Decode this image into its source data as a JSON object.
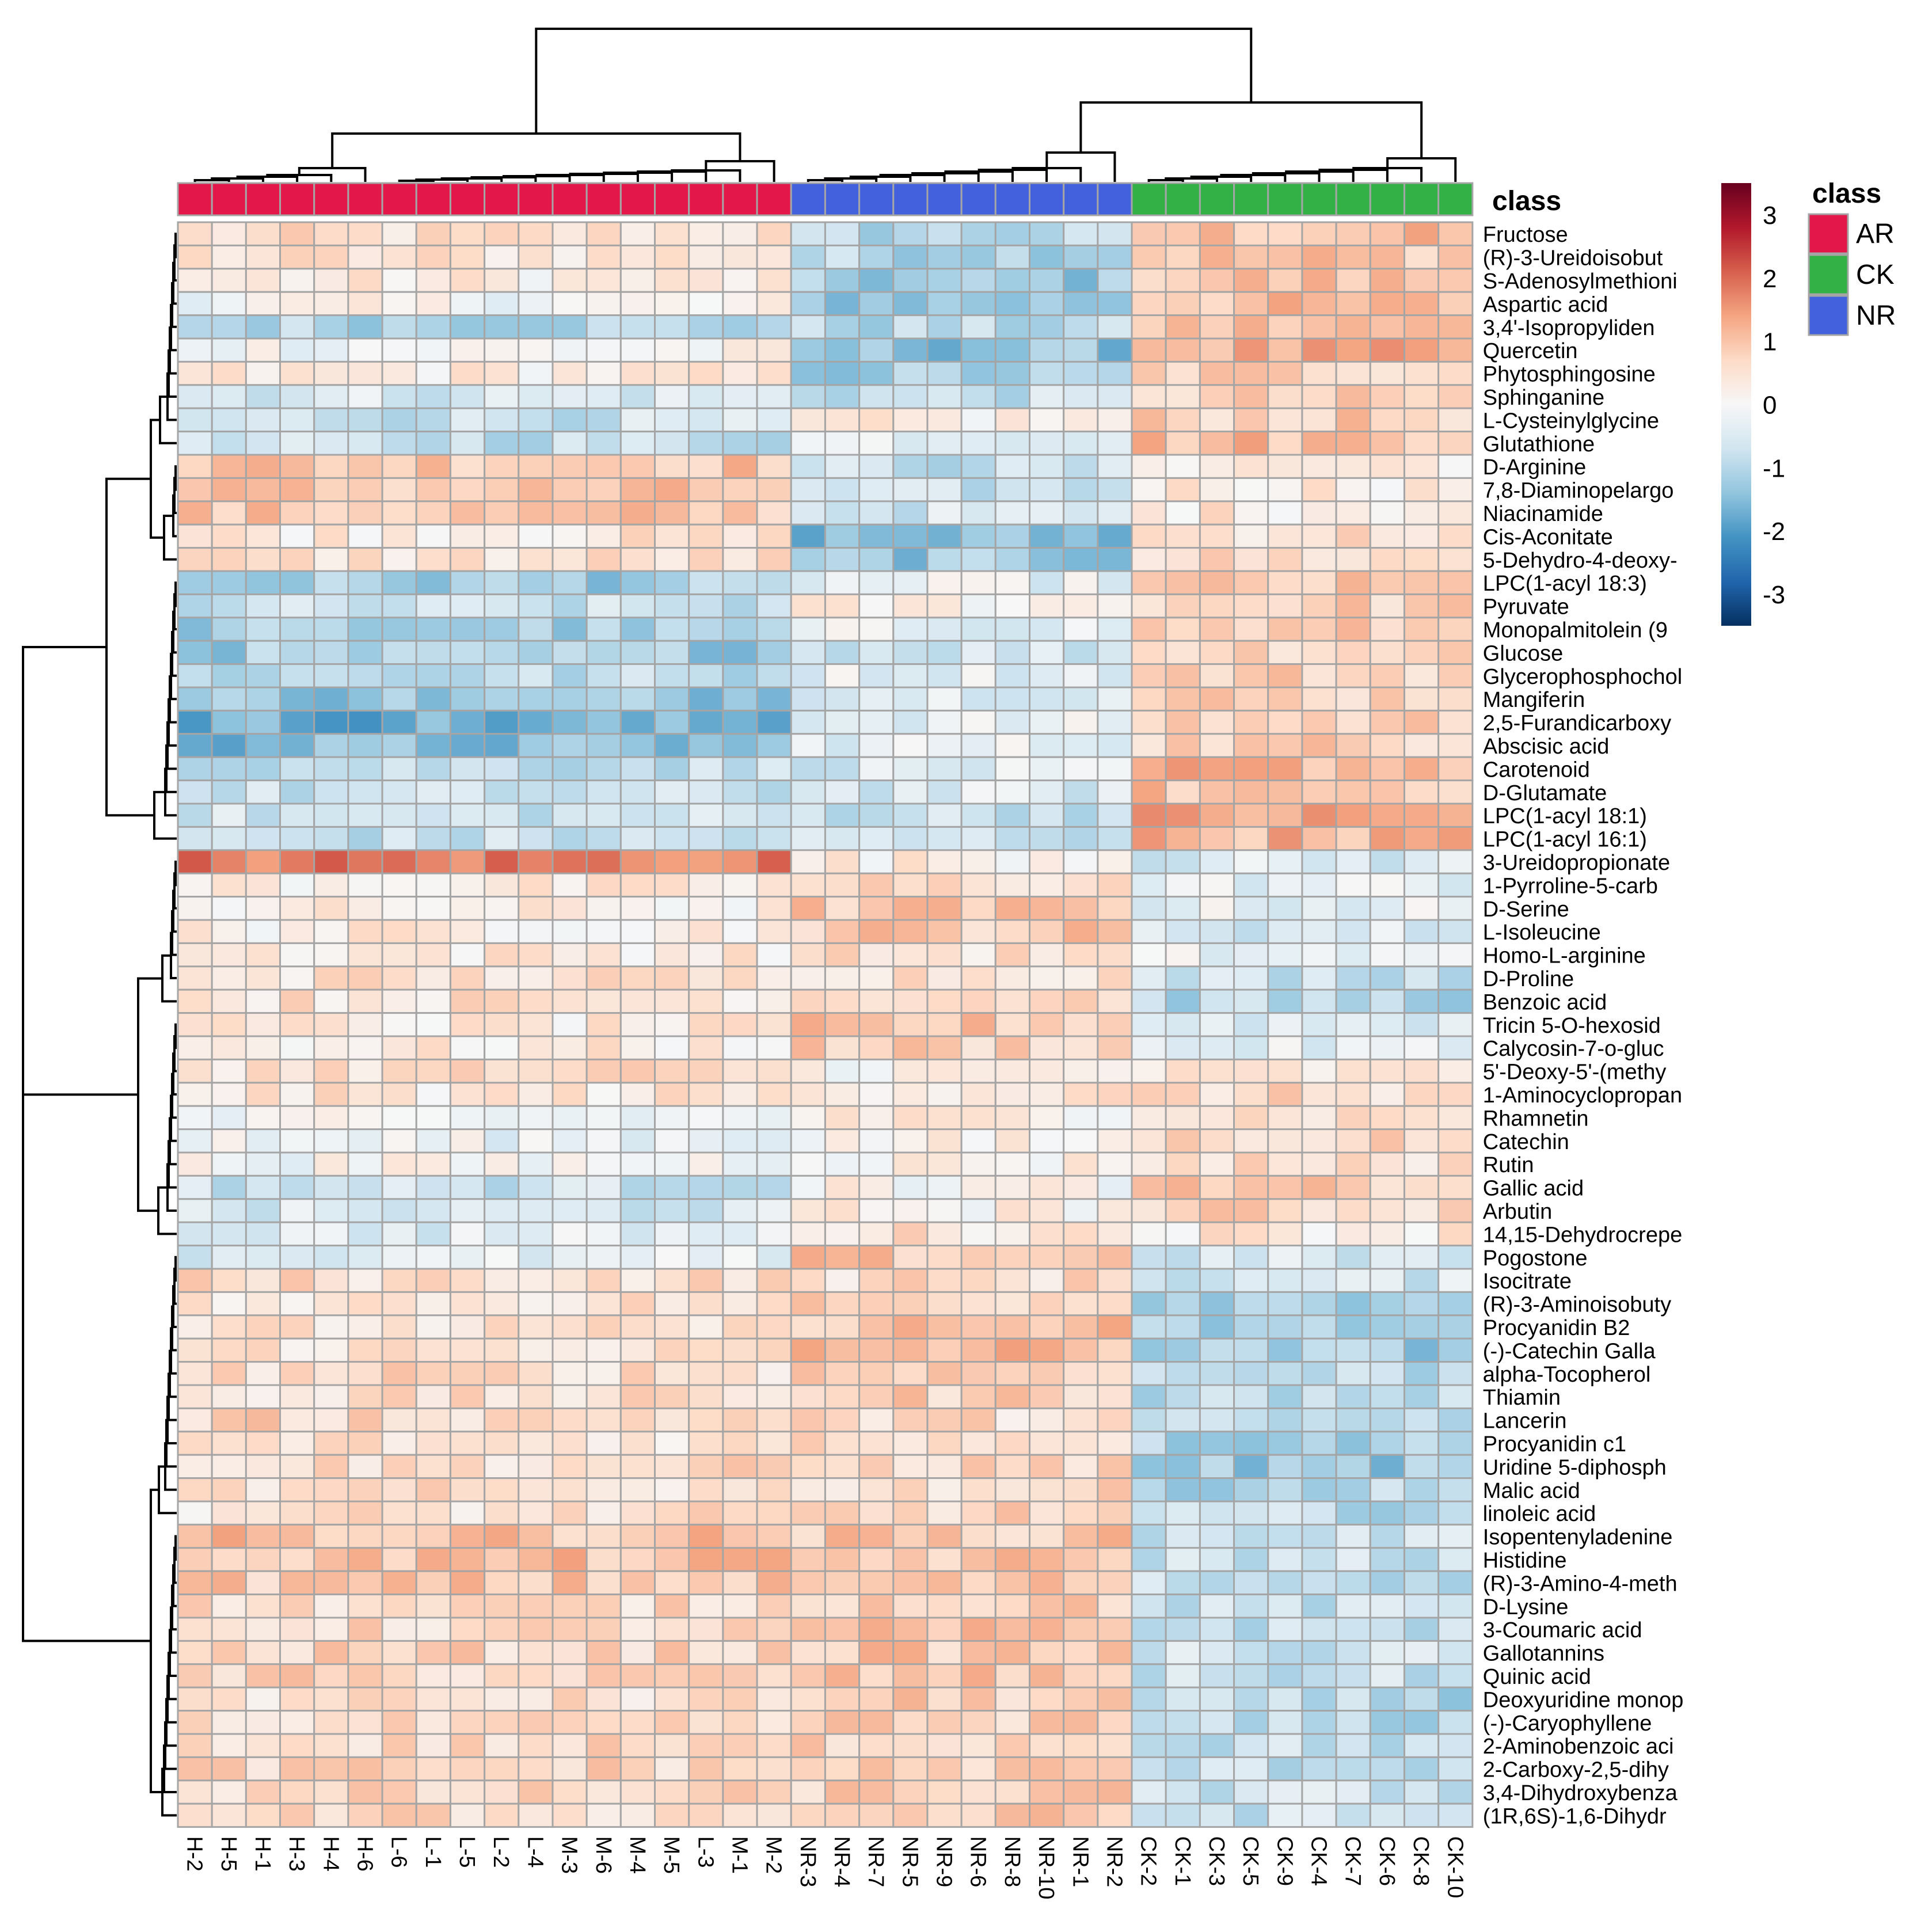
{
  "chart_data": {
    "type": "heatmap",
    "title": "",
    "columns": [
      "H-2",
      "H-5",
      "H-1",
      "H-3",
      "H-4",
      "H-6",
      "L-6",
      "L-1",
      "L-5",
      "L-2",
      "L-4",
      "M-3",
      "M-6",
      "M-4",
      "M-5",
      "L-3",
      "M-1",
      "M-2",
      "NR-3",
      "NR-4",
      "NR-7",
      "NR-5",
      "NR-9",
      "NR-6",
      "NR-8",
      "NR-10",
      "NR-1",
      "NR-2",
      "CK-2",
      "CK-1",
      "CK-3",
      "CK-5",
      "CK-9",
      "CK-4",
      "CK-7",
      "CK-6",
      "CK-8",
      "CK-10"
    ],
    "column_class": [
      "AR",
      "AR",
      "AR",
      "AR",
      "AR",
      "AR",
      "AR",
      "AR",
      "AR",
      "AR",
      "AR",
      "AR",
      "AR",
      "AR",
      "AR",
      "AR",
      "AR",
      "AR",
      "NR",
      "NR",
      "NR",
      "NR",
      "NR",
      "NR",
      "NR",
      "NR",
      "NR",
      "NR",
      "CK",
      "CK",
      "CK",
      "CK",
      "CK",
      "CK",
      "CK",
      "CK",
      "CK",
      "CK"
    ],
    "rows": [
      "Fructose",
      "(R)-3-Ureidoisobut",
      "S-Adenosylmethioni",
      "Aspartic acid",
      "3,4'-Isopropyliden",
      "Quercetin",
      "Phytosphingosine",
      "Sphinganine",
      "L-Cysteinylglycine",
      "Glutathione",
      "D-Arginine",
      "7,8-Diaminopelargo",
      "Niacinamide",
      "Cis-Aconitate",
      "5-Dehydro-4-deoxy-",
      "LPC(1-acyl 18:3)",
      "Pyruvate",
      "Monopalmitolein (9",
      "Glucose",
      "Glycerophosphochol",
      "Mangiferin",
      "2,5-Furandicarboxy",
      "Abscisic acid",
      "Carotenoid",
      "D-Glutamate",
      "LPC(1-acyl 18:1)",
      "LPC(1-acyl 16:1)",
      "3-Ureidopropionate",
      "1-Pyrroline-5-carb",
      "D-Serine",
      "L-Isoleucine",
      "Homo-L-arginine",
      "D-Proline",
      "Benzoic acid",
      "Tricin 5-O-hexosid",
      "Calycosin-7-o-gluc",
      "5'-Deoxy-5'-(methy",
      "1-Aminocyclopropan",
      "Rhamnetin",
      "Catechin",
      "Rutin",
      "Gallic acid",
      "Arbutin",
      "14,15-Dehydrocrepe",
      "Pogostone",
      "Isocitrate",
      "(R)-3-Aminoisobuty",
      "Procyanidin B2",
      "(-)-Catechin Galla",
      "alpha-Tocopherol",
      "Thiamin",
      "Lancerin",
      "Procyanidin c1",
      "Uridine 5-diphosph",
      "Malic acid",
      "linoleic acid",
      "Isopentenyladenine",
      "Histidine",
      "(R)-3-Amino-4-meth",
      "D-Lysine",
      "3-Coumaric acid",
      "Gallotannins",
      "Quinic acid",
      "Deoxyuridine monop",
      "(-)-Caryophyllene",
      "2-Aminobenzoic aci",
      "2-Carboxy-2,5-dihy",
      "3,4-Dihydroxybenza",
      "(1R,6S)-1,6-Dihydr"
    ],
    "row_pattern": [
      [
        0.5,
        -1.0,
        1.0
      ],
      [
        0.5,
        -1.0,
        1.0
      ],
      [
        0.3,
        -1.3,
        1.0
      ],
      [
        0.0,
        -1.3,
        1.0
      ],
      [
        -1.0,
        -1.0,
        1.0
      ],
      [
        0.0,
        -1.4,
        1.2
      ],
      [
        0.3,
        -1.2,
        0.8
      ],
      [
        -0.5,
        -0.8,
        0.7
      ],
      [
        -0.7,
        0.2,
        0.8
      ],
      [
        -0.8,
        -0.2,
        1.1
      ],
      [
        1.0,
        -0.8,
        0.4
      ],
      [
        0.9,
        -0.8,
        0.4
      ],
      [
        0.9,
        -0.6,
        0.4
      ],
      [
        0.4,
        -1.5,
        0.6
      ],
      [
        0.5,
        -1.3,
        0.6
      ],
      [
        -1.2,
        -0.3,
        0.8
      ],
      [
        -0.8,
        0.2,
        0.8
      ],
      [
        -1.2,
        -0.3,
        0.8
      ],
      [
        -1.2,
        -0.6,
        0.8
      ],
      [
        -0.9,
        -0.3,
        0.8
      ],
      [
        -1.3,
        -0.3,
        0.8
      ],
      [
        -1.7,
        -0.3,
        0.8
      ],
      [
        -1.5,
        -0.3,
        0.8
      ],
      [
        -0.8,
        -0.5,
        1.2
      ],
      [
        -0.8,
        -0.5,
        1.0
      ],
      [
        -0.7,
        -0.7,
        1.3
      ],
      [
        -0.8,
        -0.7,
        1.2
      ],
      [
        1.8,
        0.3,
        -0.5
      ],
      [
        0.3,
        0.6,
        -0.3
      ],
      [
        0.2,
        0.9,
        -0.3
      ],
      [
        0.3,
        0.9,
        -0.5
      ],
      [
        0.4,
        0.5,
        -0.3
      ],
      [
        0.5,
        0.6,
        -0.7
      ],
      [
        0.5,
        0.8,
        -1.0
      ],
      [
        0.3,
        0.9,
        -0.4
      ],
      [
        0.3,
        0.8,
        -0.4
      ],
      [
        0.6,
        0.2,
        0.3
      ],
      [
        0.4,
        0.5,
        0.6
      ],
      [
        -0.2,
        0.3,
        0.6
      ],
      [
        -0.2,
        0.1,
        0.7
      ],
      [
        0.0,
        0.2,
        0.6
      ],
      [
        -0.7,
        0.1,
        0.8
      ],
      [
        -0.6,
        0.2,
        0.7
      ],
      [
        -0.4,
        0.5,
        0.4
      ],
      [
        -0.4,
        0.9,
        -0.6
      ],
      [
        0.6,
        0.6,
        -0.6
      ],
      [
        0.5,
        0.8,
        -1.0
      ],
      [
        0.4,
        1.0,
        -1.2
      ],
      [
        0.5,
        1.1,
        -1.2
      ],
      [
        0.6,
        0.9,
        -0.9
      ],
      [
        0.5,
        0.8,
        -0.9
      ],
      [
        0.7,
        0.6,
        -1.0
      ],
      [
        0.5,
        0.7,
        -1.1
      ],
      [
        0.6,
        0.7,
        -1.3
      ],
      [
        0.5,
        0.6,
        -1.0
      ],
      [
        0.5,
        0.7,
        -0.9
      ],
      [
        1.0,
        0.9,
        -0.7
      ],
      [
        1.0,
        0.9,
        -0.7
      ],
      [
        0.9,
        0.9,
        -0.8
      ],
      [
        0.6,
        0.9,
        -0.8
      ],
      [
        0.6,
        0.9,
        -0.8
      ],
      [
        0.7,
        0.9,
        -0.7
      ],
      [
        0.7,
        0.9,
        -0.8
      ],
      [
        0.5,
        0.8,
        -1.0
      ],
      [
        0.5,
        0.8,
        -1.0
      ],
      [
        0.6,
        0.8,
        -0.8
      ],
      [
        0.7,
        0.8,
        -0.8
      ],
      [
        0.6,
        0.8,
        -0.7
      ],
      [
        0.6,
        0.8,
        -0.7
      ]
    ],
    "colorscale": [
      "#053061",
      "#2166ac",
      "#4393c3",
      "#92c5de",
      "#d1e5f0",
      "#f7f7f7",
      "#fddbc7",
      "#f4a582",
      "#d6604d",
      "#b2182b",
      "#67001f"
    ],
    "color_range": [
      -3.5,
      3.5
    ],
    "colorbar_ticks": [
      "3",
      "2",
      "1",
      "0",
      "-1",
      "-2",
      "-3"
    ],
    "colorbar_values": [
      3,
      2,
      1,
      0,
      -1,
      -2,
      -3
    ],
    "legend": {
      "title": "class",
      "entries": [
        {
          "label": "AR",
          "color": "#e3174a"
        },
        {
          "label": "CK",
          "color": "#33b046"
        },
        {
          "label": "NR",
          "color": "#4361dd"
        }
      ]
    },
    "annotation_label": "class"
  }
}
